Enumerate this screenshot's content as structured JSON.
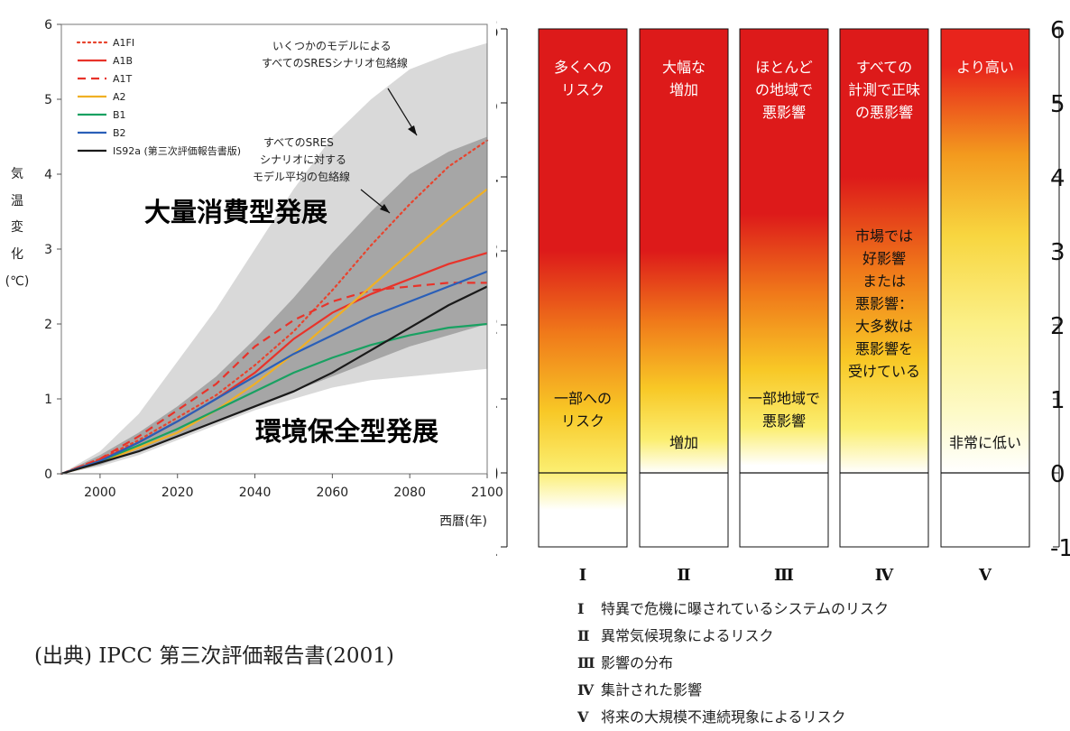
{
  "source_note": "(出典) IPCC 第三次評価報告書(2001)",
  "chart_data": [
    {
      "type": "line",
      "title": "",
      "xlabel": "西暦(年)",
      "ylabel": "気温変化(℃)",
      "xlim": [
        1990,
        2100
      ],
      "ylim": [
        0,
        6
      ],
      "xticks": [
        2000,
        2020,
        2040,
        2060,
        2080,
        2100
      ],
      "yticks": [
        0,
        1,
        2,
        3,
        4,
        5,
        6
      ],
      "x": [
        1990,
        2000,
        2010,
        2020,
        2030,
        2040,
        2050,
        2060,
        2070,
        2080,
        2090,
        2100
      ],
      "series": [
        {
          "name": "A1FI",
          "color": "#e8442e",
          "dash": "dotted",
          "values": [
            0,
            0.2,
            0.45,
            0.75,
            1.05,
            1.45,
            1.9,
            2.45,
            3.05,
            3.6,
            4.1,
            4.45
          ]
        },
        {
          "name": "A1B",
          "color": "#e8332a",
          "dash": "solid",
          "values": [
            0,
            0.18,
            0.42,
            0.7,
            1.0,
            1.35,
            1.8,
            2.15,
            2.4,
            2.6,
            2.8,
            2.95
          ]
        },
        {
          "name": "A1T",
          "color": "#e8332a",
          "dash": "dashed",
          "values": [
            0,
            0.2,
            0.5,
            0.85,
            1.2,
            1.7,
            2.05,
            2.3,
            2.45,
            2.5,
            2.55,
            2.55
          ]
        },
        {
          "name": "A2",
          "color": "#f0b024",
          "dash": "solid",
          "values": [
            0,
            0.15,
            0.35,
            0.55,
            0.85,
            1.2,
            1.6,
            2.05,
            2.5,
            2.95,
            3.4,
            3.8
          ]
        },
        {
          "name": "B1",
          "color": "#19a162",
          "dash": "solid",
          "values": [
            0,
            0.17,
            0.38,
            0.6,
            0.85,
            1.1,
            1.35,
            1.55,
            1.72,
            1.85,
            1.95,
            2.0
          ]
        },
        {
          "name": "B2",
          "color": "#2a5fb8",
          "dash": "solid",
          "values": [
            0,
            0.17,
            0.42,
            0.7,
            1.0,
            1.3,
            1.6,
            1.85,
            2.1,
            2.3,
            2.5,
            2.7
          ]
        },
        {
          "name": "IS92a (第三次評価報告書版)",
          "color": "#1a1a1a",
          "dash": "solid",
          "values": [
            0,
            0.15,
            0.3,
            0.5,
            0.7,
            0.9,
            1.1,
            1.35,
            1.65,
            1.95,
            2.25,
            2.5
          ]
        }
      ],
      "envelopes": [
        {
          "label": "いくつかのモデルによる\nすべてのSRESシナリオ包絡線",
          "color": "#d9d9d9",
          "upper": [
            0,
            0.3,
            0.8,
            1.5,
            2.2,
            3.0,
            3.8,
            4.5,
            5.0,
            5.4,
            5.6,
            5.75
          ],
          "lower": [
            0,
            0.1,
            0.25,
            0.45,
            0.65,
            0.85,
            1.0,
            1.15,
            1.25,
            1.3,
            1.35,
            1.4
          ]
        },
        {
          "label": "すべてのSRESシナリオに対する\nモデル平均の包絡線",
          "color": "#a6a6a6",
          "upper": [
            0,
            0.25,
            0.55,
            0.9,
            1.3,
            1.8,
            2.35,
            2.95,
            3.5,
            4.0,
            4.3,
            4.5
          ],
          "lower": [
            0,
            0.12,
            0.3,
            0.5,
            0.7,
            0.9,
            1.1,
            1.3,
            1.5,
            1.7,
            1.85,
            2.0
          ]
        }
      ],
      "annotations": [
        "大量消費型発展",
        "環境保全型発展"
      ],
      "legend": "top-left"
    },
    {
      "type": "bar",
      "title": "",
      "ylim": [
        -1,
        6
      ],
      "yticks": [
        -1,
        0,
        1,
        2,
        3,
        4,
        5,
        6
      ],
      "categories": [
        "Ⅰ",
        "Ⅱ",
        "Ⅲ",
        "Ⅳ",
        "Ⅴ"
      ],
      "category_descriptions": [
        "特異で危機に曝されているシステムのリスク",
        "異常気候現象によるリスク",
        "影響の分布",
        "集計された影響",
        "将来の大規模不連続現象によるリスク"
      ],
      "bars": [
        {
          "top_label": [
            "多くへの",
            "リスク"
          ],
          "bottom_label": [
            "一部への",
            "リスク"
          ],
          "red_from": 3.0,
          "pale_to": -0.5,
          "gradient_style": "standard"
        },
        {
          "top_label": [
            "大幅な",
            "増加"
          ],
          "bottom_label": [
            "増加"
          ],
          "red_from": 3.0,
          "pale_to": 0.0,
          "gradient_style": "standard"
        },
        {
          "top_label": [
            "ほとんど",
            "の地域で",
            "悪影響"
          ],
          "bottom_label": [
            "一部地域で",
            "悪影響"
          ],
          "red_from": 3.5,
          "pale_to": 0.1,
          "gradient_style": "standard"
        },
        {
          "top_label": [
            "すべての",
            "計測で正味",
            "の悪影響"
          ],
          "bottom_label": [
            "市場では",
            "好影響",
            "または",
            "悪影響：",
            "大多数は",
            "悪影響を",
            "受けている"
          ],
          "red_from": 4.0,
          "pale_to": 0.0,
          "gradient_style": "standard"
        },
        {
          "top_label": [
            "より高い"
          ],
          "bottom_label": [
            "非常に低い"
          ],
          "red_from": 5.5,
          "pale_to": 0.0,
          "gradient_style": "soft"
        }
      ]
    }
  ]
}
